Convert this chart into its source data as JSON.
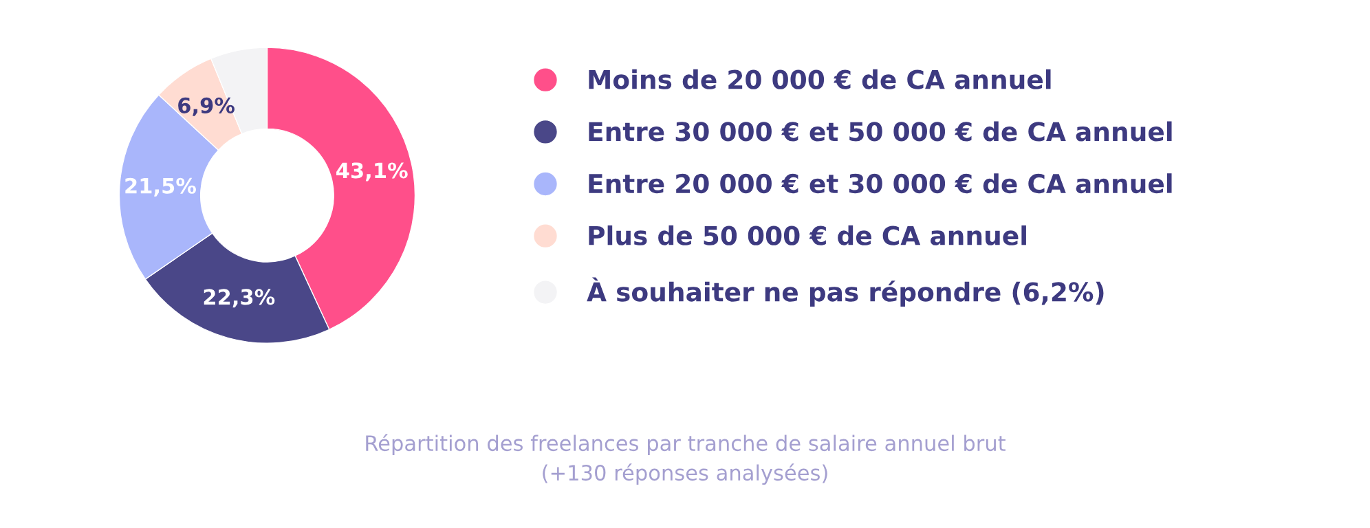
{
  "chart_data": {
    "type": "donut",
    "categories": [
      "Moins de 20 000 € de CA annuel",
      "Entre 30 000 € et 50 000 € de CA annuel",
      "Entre 20 000 € et 30 000 € de CA annuel",
      "Plus de 50 000 € de CA annuel",
      "À souhaiter ne pas répondre (6,2%)"
    ],
    "values": [
      43.1,
      22.3,
      21.5,
      6.9,
      6.2
    ],
    "colors": [
      "#ff4f8a",
      "#4a4788",
      "#a9b6fb",
      "#ffdcd2",
      "#f3f3f5"
    ],
    "value_labels": [
      "43,1%",
      "22,3%",
      "21,5%",
      "6,9%",
      null
    ],
    "legend": "right",
    "annotations": [
      "Répartition des freelances par tranche de salaire annuel brut\n(+130 réponses analysées)"
    ]
  }
}
